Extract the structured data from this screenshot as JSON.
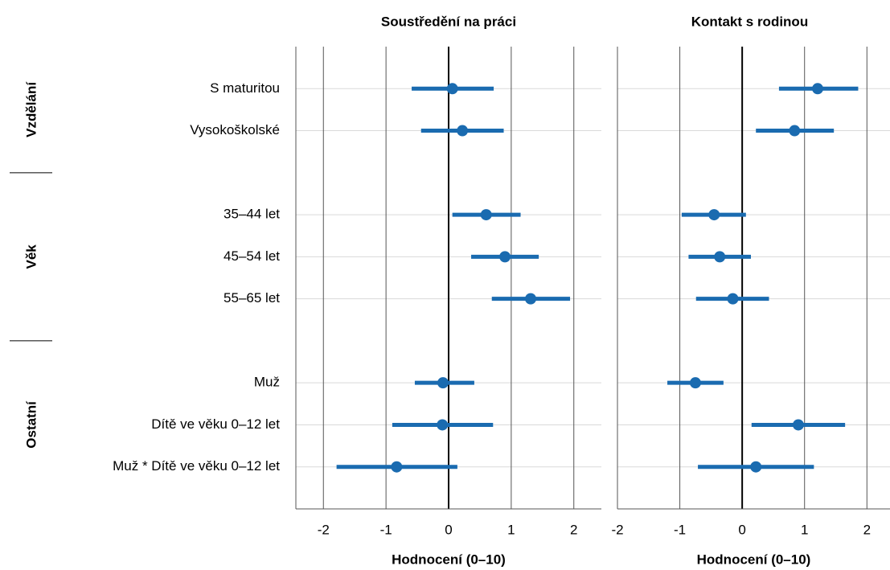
{
  "chart_data": [
    {
      "type": "errorbar",
      "title": "Soustředění na práci",
      "x_label": "Hodnocení (0–10)",
      "categories": [
        "S maturitou",
        "Vysokoškolské",
        null,
        "35–44 let",
        "45–54 let",
        "55–65 let",
        null,
        "Muž",
        "Dítě ve věku 0–12 let",
        "Muž * Dítě ve věku 0–12 let"
      ],
      "groups": [
        "Vzdělání",
        "Věk",
        "Ostatní"
      ],
      "values": [
        0.06,
        0.22,
        null,
        0.6,
        0.9,
        1.31,
        null,
        -0.09,
        -0.1,
        -0.83
      ],
      "low": [
        -0.59,
        -0.44,
        null,
        0.06,
        0.36,
        0.69,
        null,
        -0.54,
        -0.9,
        -1.79
      ],
      "high": [
        0.72,
        0.88,
        null,
        1.15,
        1.44,
        1.94,
        null,
        0.41,
        0.71,
        0.14
      ],
      "color": "#1a6bb0",
      "xlim": [
        -2.44,
        2.44
      ],
      "xticks": [
        -2,
        -1,
        0,
        1,
        2
      ],
      "grid": true
    },
    {
      "type": "errorbar",
      "title": "Kontakt s rodinou",
      "x_label": "Hodnocení (0–10)",
      "values": [
        1.21,
        0.84,
        null,
        -0.45,
        -0.36,
        -0.15,
        null,
        -0.75,
        0.9,
        0.22
      ],
      "low": [
        0.59,
        0.22,
        null,
        -0.97,
        -0.86,
        -0.74,
        null,
        -1.2,
        0.15,
        -0.71
      ],
      "high": [
        1.86,
        1.47,
        null,
        0.06,
        0.14,
        0.43,
        null,
        -0.3,
        1.65,
        1.15
      ],
      "color": "#1a6bb0",
      "xlim": [
        -2,
        2.37
      ],
      "xticks": [
        -2,
        -1,
        0,
        1,
        2
      ],
      "grid": true
    }
  ]
}
